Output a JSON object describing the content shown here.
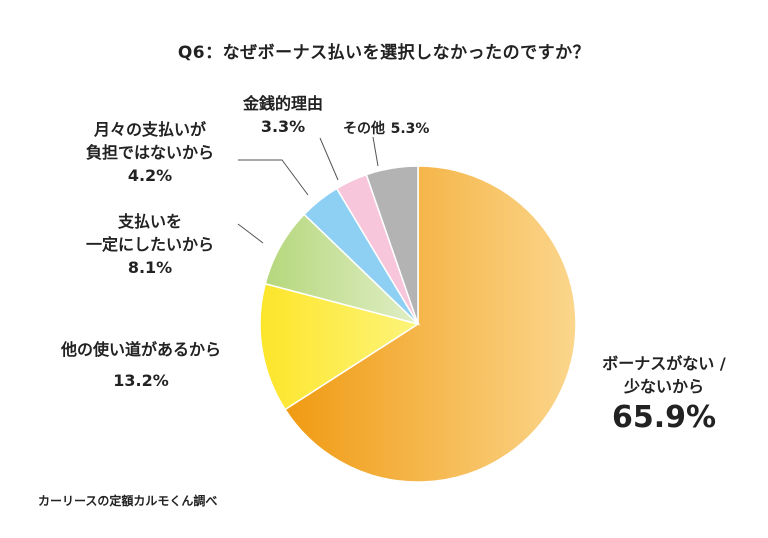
{
  "chart_data": {
    "type": "pie",
    "title": "Q6：なぜボーナス払いを選択しなかったのですか？",
    "slices": [
      {
        "label": "ボーナスがない / 少ないから",
        "value": 65.9,
        "display": "65.9%",
        "color": "#f5a52c"
      },
      {
        "label": "他の使い道があるから",
        "value": 13.2,
        "display": "13.2%",
        "color": "#fde83a"
      },
      {
        "label": "支払いを一定にしたいから",
        "value": 8.1,
        "display": "8.1%",
        "color": "#b8d982"
      },
      {
        "label": "月々の支払いが負担ではないから",
        "value": 4.2,
        "display": "4.2%",
        "color": "#8ecff4"
      },
      {
        "label": "金銭的理由",
        "value": 3.3,
        "display": "3.3%",
        "color": "#f7c6da"
      },
      {
        "label": "その他",
        "value": 5.3,
        "display": "5.3%",
        "color": "#b3b3b3"
      }
    ]
  },
  "labels": {
    "bonus_line1": "ボーナスがない /",
    "bonus_line2": "少ないから",
    "other_use": "他の使い道があるから",
    "fixed_line1": "支払いを",
    "fixed_line2": "一定にしたいから",
    "burden_line1": "月々の支払いが",
    "burden_line2": "負担ではないから",
    "money": "金銭的理由",
    "other": "その他"
  },
  "source": "カーリースの定額カルモくん調べ"
}
